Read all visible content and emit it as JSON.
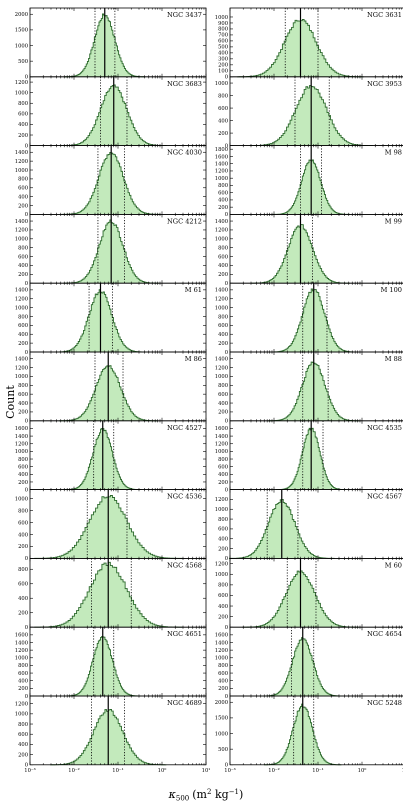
{
  "figure": {
    "ylabel": "Count",
    "xlabel_symbol": "κ",
    "xlabel_sub": "500",
    "xlabel_units_pre": "(m",
    "xlabel_units_exp1": "2",
    "xlabel_units_mid": " kg",
    "xlabel_units_exp2": "−1",
    "xlabel_units_post": ")"
  },
  "chart_data": {
    "type": "histogram-grid",
    "x_scale": "log",
    "xlim": [
      0.001,
      10
    ],
    "x_tick_labels": [
      "10⁻³",
      "10⁻²",
      "10⁻¹",
      "10⁰",
      "10¹"
    ],
    "x_tick_values": [
      0.001,
      0.01,
      0.1,
      1,
      10
    ],
    "panels": [
      {
        "name": "NGC 3437",
        "ylim": [
          0,
          2200
        ],
        "yticks": [
          0,
          500,
          1000,
          1500,
          2000
        ],
        "median": 0.05,
        "p16": 0.03,
        "p84": 0.085,
        "peak": 1980,
        "log_sigma": 0.23
      },
      {
        "name": "NGC 3631",
        "ylim": [
          0,
          1150
        ],
        "yticks": [
          0,
          100,
          200,
          300,
          400,
          500,
          600,
          700,
          800,
          900,
          1000
        ],
        "median": 0.04,
        "p16": 0.018,
        "p84": 0.1,
        "peak": 960,
        "log_sigma": 0.36
      },
      {
        "name": "NGC 3683",
        "ylim": [
          0,
          1300
        ],
        "yticks": [
          0,
          200,
          400,
          600,
          800,
          1000,
          1200
        ],
        "median": 0.08,
        "p16": 0.04,
        "p84": 0.16,
        "peak": 1120,
        "log_sigma": 0.3
      },
      {
        "name": "NGC 3953",
        "ylim": [
          0,
          1100
        ],
        "yticks": [
          0,
          200,
          400,
          600,
          800,
          1000
        ],
        "median": 0.07,
        "p16": 0.03,
        "p84": 0.18,
        "peak": 960,
        "log_sigma": 0.35
      },
      {
        "name": "NGC 4030",
        "ylim": [
          0,
          1550
        ],
        "yticks": [
          0,
          200,
          400,
          600,
          800,
          1000,
          1200,
          1400
        ],
        "median": 0.07,
        "p16": 0.035,
        "p84": 0.14,
        "peak": 1400,
        "log_sigma": 0.28
      },
      {
        "name": "M 98",
        "ylim": [
          0,
          1900
        ],
        "yticks": [
          0,
          200,
          400,
          600,
          800,
          1000,
          1200,
          1400,
          1600,
          1800
        ],
        "median": 0.07,
        "p16": 0.04,
        "p84": 0.12,
        "peak": 1500,
        "log_sigma": 0.22
      },
      {
        "name": "NGC 4212",
        "ylim": [
          0,
          1550
        ],
        "yticks": [
          0,
          200,
          400,
          600,
          800,
          1000,
          1200,
          1400
        ],
        "median": 0.07,
        "p16": 0.035,
        "p84": 0.14,
        "peak": 1400,
        "log_sigma": 0.27
      },
      {
        "name": "M 99",
        "ylim": [
          0,
          1550
        ],
        "yticks": [
          0,
          200,
          400,
          600,
          800,
          1000,
          1200,
          1400
        ],
        "median": 0.04,
        "p16": 0.02,
        "p84": 0.075,
        "peak": 1300,
        "log_sigma": 0.28
      },
      {
        "name": "M 61",
        "ylim": [
          0,
          1550
        ],
        "yticks": [
          0,
          200,
          400,
          600,
          800,
          1000,
          1200,
          1400
        ],
        "median": 0.04,
        "p16": 0.022,
        "p84": 0.075,
        "peak": 1380,
        "log_sigma": 0.26
      },
      {
        "name": "M 100",
        "ylim": [
          0,
          1550
        ],
        "yticks": [
          0,
          200,
          400,
          600,
          800,
          1000,
          1200,
          1400
        ],
        "median": 0.08,
        "p16": 0.045,
        "p84": 0.16,
        "peak": 1420,
        "log_sigma": 0.25
      },
      {
        "name": "M 86",
        "ylim": [
          0,
          1550
        ],
        "yticks": [
          0,
          200,
          400,
          600,
          800,
          1000,
          1200,
          1400
        ],
        "median": 0.06,
        "p16": 0.03,
        "p84": 0.13,
        "peak": 1250,
        "log_sigma": 0.28
      },
      {
        "name": "M 88",
        "ylim": [
          0,
          1550
        ],
        "yticks": [
          0,
          200,
          400,
          600,
          800,
          1000,
          1200,
          1400
        ],
        "median": 0.08,
        "p16": 0.045,
        "p84": 0.17,
        "peak": 1320,
        "log_sigma": 0.26
      },
      {
        "name": "NGC 4527",
        "ylim": [
          0,
          1800
        ],
        "yticks": [
          0,
          200,
          400,
          600,
          800,
          1000,
          1200,
          1400,
          1600
        ],
        "median": 0.045,
        "p16": 0.028,
        "p84": 0.08,
        "peak": 1580,
        "log_sigma": 0.22
      },
      {
        "name": "NGC 4535",
        "ylim": [
          0,
          1800
        ],
        "yticks": [
          0,
          200,
          400,
          600,
          800,
          1000,
          1200,
          1400,
          1600
        ],
        "median": 0.07,
        "p16": 0.045,
        "p84": 0.13,
        "peak": 1600,
        "log_sigma": 0.2
      },
      {
        "name": "NGC 4536",
        "ylim": [
          0,
          1150
        ],
        "yticks": [
          0,
          200,
          400,
          600,
          800,
          1000
        ],
        "median": 0.06,
        "p16": 0.02,
        "p84": 0.16,
        "peak": 1050,
        "log_sigma": 0.42
      },
      {
        "name": "NGC 4567",
        "ylim": [
          0,
          1400
        ],
        "yticks": [
          0,
          200,
          400,
          600,
          800,
          1000,
          1200
        ],
        "median": 0.015,
        "p16": 0.007,
        "p84": 0.035,
        "peak": 1180,
        "log_sigma": 0.3
      },
      {
        "name": "NGC 4568",
        "ylim": [
          0,
          950
        ],
        "yticks": [
          0,
          200,
          400,
          600,
          800
        ],
        "median": 0.06,
        "p16": 0.025,
        "p84": 0.2,
        "peak": 880,
        "log_sigma": 0.42
      },
      {
        "name": "M 60",
        "ylim": [
          0,
          1300
        ],
        "yticks": [
          0,
          200,
          400,
          600,
          800,
          1000,
          1200
        ],
        "median": 0.04,
        "p16": 0.02,
        "p84": 0.09,
        "peak": 1050,
        "log_sigma": 0.33
      },
      {
        "name": "NGC 4651",
        "ylim": [
          0,
          1800
        ],
        "yticks": [
          0,
          200,
          400,
          600,
          800,
          1000,
          1200,
          1400,
          1600
        ],
        "median": 0.045,
        "p16": 0.028,
        "p84": 0.08,
        "peak": 1560,
        "log_sigma": 0.22
      },
      {
        "name": "NGC 4654",
        "ylim": [
          0,
          1800
        ],
        "yticks": [
          0,
          200,
          400,
          600,
          800,
          1000,
          1200,
          1400,
          1600
        ],
        "median": 0.045,
        "p16": 0.025,
        "p84": 0.08,
        "peak": 1520,
        "log_sigma": 0.23
      },
      {
        "name": "NGC 4689",
        "ylim": [
          0,
          1350
        ],
        "yticks": [
          0,
          200,
          400,
          600,
          800,
          1000,
          1200
        ],
        "median": 0.06,
        "p16": 0.025,
        "p84": 0.14,
        "peak": 1080,
        "log_sigma": 0.33
      },
      {
        "name": "NGC 5248",
        "ylim": [
          0,
          2200
        ],
        "yticks": [
          0,
          500,
          1000,
          1500,
          2000
        ],
        "median": 0.045,
        "p16": 0.028,
        "p84": 0.08,
        "peak": 1900,
        "log_sigma": 0.22
      }
    ]
  }
}
